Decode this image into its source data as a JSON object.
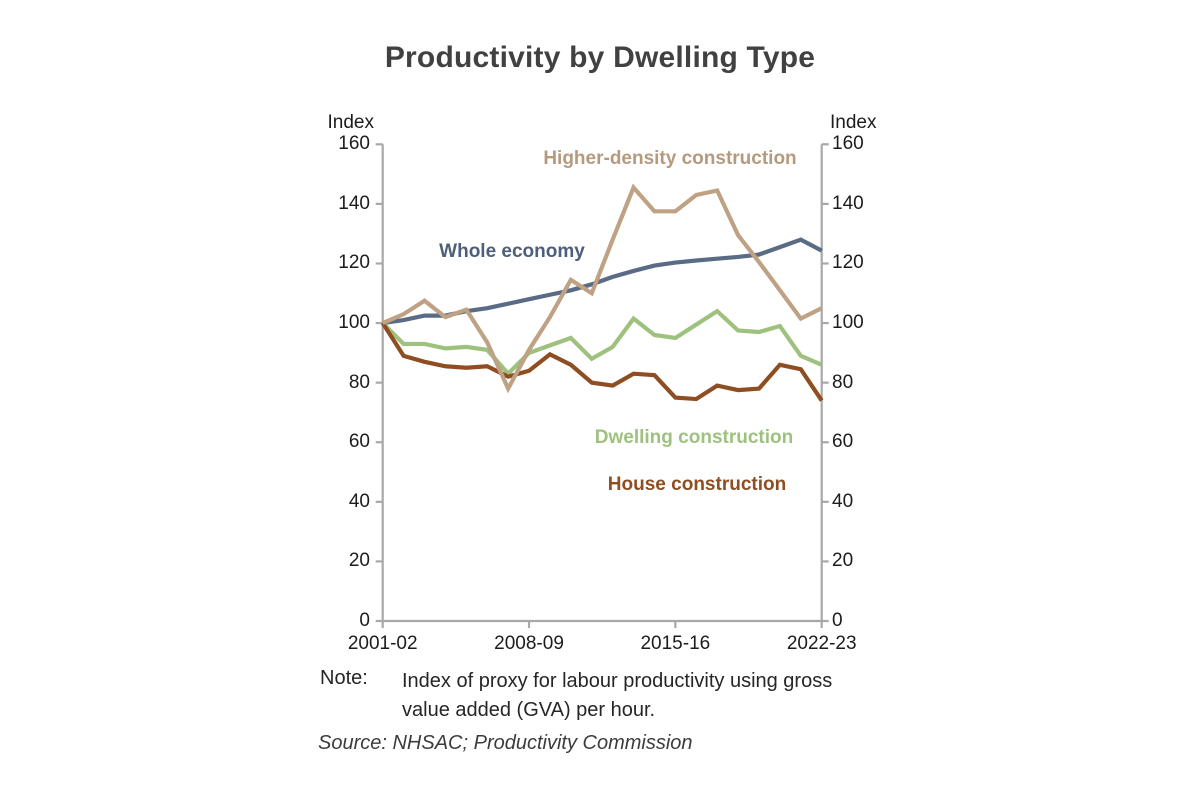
{
  "note": {
    "label": "Note:",
    "text": "Index of proxy for labour productivity using gross value added (GVA) per hour."
  },
  "source": "Source: NHSAC; Productivity Commission",
  "chart_data": {
    "type": "line",
    "title": "Productivity by Dwelling Type",
    "axis_unit_left": "Index",
    "axis_unit_right": "Index",
    "ylim": [
      0,
      160
    ],
    "y_ticks": [
      0,
      20,
      40,
      60,
      80,
      100,
      120,
      140,
      160
    ],
    "grid": false,
    "legend": "inline-colored-labels",
    "axis_color": "#a8a8a8",
    "categories": [
      "2001-02",
      "2002-03",
      "2003-04",
      "2004-05",
      "2005-06",
      "2006-07",
      "2007-08",
      "2008-09",
      "2009-10",
      "2010-11",
      "2011-12",
      "2012-13",
      "2013-14",
      "2014-15",
      "2015-16",
      "2016-17",
      "2017-18",
      "2018-19",
      "2019-20",
      "2020-21",
      "2021-22",
      "2022-23"
    ],
    "x_tick_labels": [
      {
        "index": 0,
        "label": "2001-02"
      },
      {
        "index": 7,
        "label": "2008-09"
      },
      {
        "index": 14,
        "label": "2015-16"
      },
      {
        "index": 21,
        "label": "2022-23"
      }
    ],
    "series": [
      {
        "name": "Whole economy",
        "color": "#5a6b85",
        "label_color": "#4d5f7a",
        "values": [
          100,
          101,
          102.5,
          102.5,
          104,
          105,
          106.5,
          108,
          109.5,
          111,
          113,
          115.5,
          117.5,
          119.3,
          120.3,
          121,
          121.6,
          122.2,
          123,
          125.5,
          128,
          124.3
        ]
      },
      {
        "name": "Dwelling construction",
        "color": "#9ec17e",
        "label_color": "#9fc180",
        "values": [
          100,
          93,
          93,
          91.5,
          92,
          91,
          83,
          90,
          92.5,
          95,
          88,
          92,
          101.5,
          96,
          95,
          99.5,
          104,
          97.5,
          97,
          99,
          89,
          86
        ]
      },
      {
        "name": "House construction",
        "color": "#8f4e22",
        "label_color": "#8f4e22",
        "values": [
          100,
          89,
          87,
          85.5,
          85,
          85.5,
          82,
          84,
          89.5,
          86,
          80,
          79,
          83,
          82.5,
          75,
          74.5,
          79,
          77.5,
          78,
          86,
          84.5,
          74
        ]
      },
      {
        "name": "Higher-density construction",
        "color": "#bfa184",
        "label_color": "#b69a7d",
        "values": [
          100,
          103,
          107.5,
          102,
          104.5,
          93.5,
          78,
          91,
          102,
          114.5,
          110,
          128,
          145.5,
          137.5,
          137.5,
          143,
          144.5,
          129.5,
          120.5,
          111,
          101.5,
          105
        ]
      }
    ]
  }
}
